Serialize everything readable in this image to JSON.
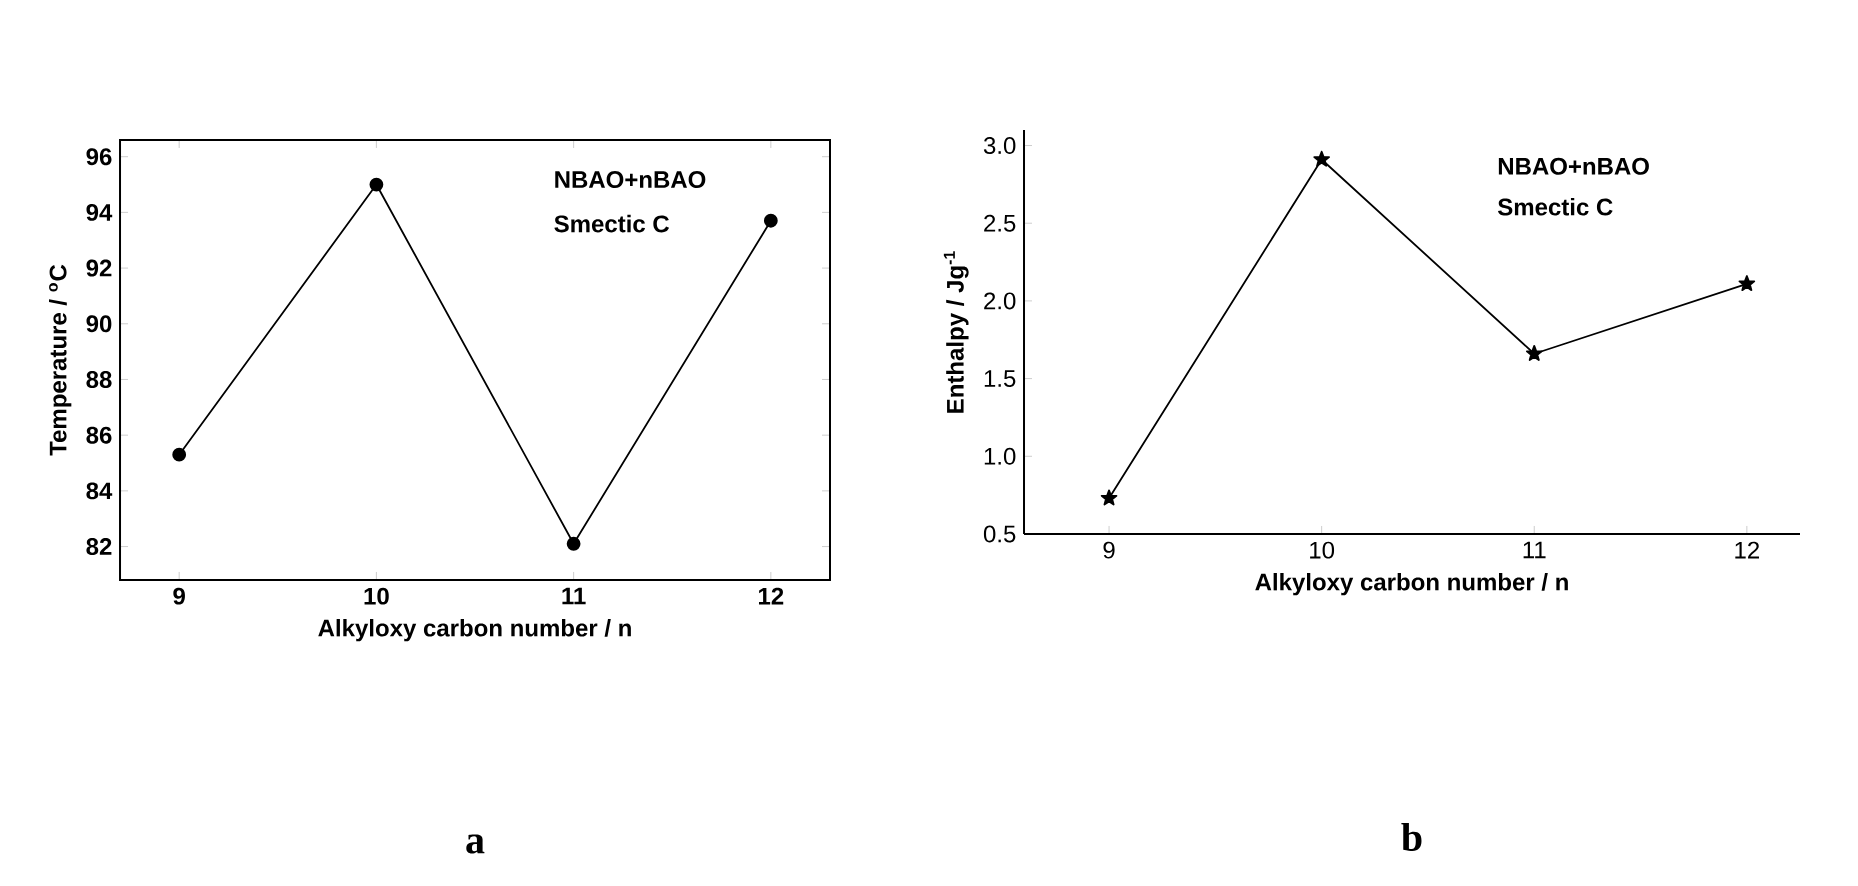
{
  "chart_data": [
    {
      "type": "line",
      "x": [
        9,
        10,
        11,
        12
      ],
      "values": [
        85.3,
        95.0,
        82.1,
        93.7
      ],
      "color": "#000000",
      "marker": "circle",
      "line_style": "solid",
      "xlabel": "Alkyloxy carbon number / n",
      "ylabel": "Temperature / $^{o}$C",
      "xlim": [
        8.7,
        12.3
      ],
      "ylim": [
        80.8,
        96.6
      ],
      "xticks": [
        9,
        10,
        11,
        12
      ],
      "yticks": [
        82,
        84,
        86,
        88,
        90,
        92,
        94,
        96
      ],
      "annotations": [
        "NBAO+nBAO",
        "Smectic C",
        "a"
      ]
    },
    {
      "type": "line",
      "x": [
        9,
        10,
        11,
        12
      ],
      "values": [
        0.73,
        2.91,
        1.66,
        2.11
      ],
      "color": "#000000",
      "marker": "star",
      "line_style": "solid",
      "xlabel": "Alkyloxy carbon number / n",
      "ylabel": "Enthalpy  / Jg$^{-1}$",
      "xlim": [
        8.6,
        12.25
      ],
      "ylim": [
        0.5,
        3.1
      ],
      "xticks": [
        9,
        10,
        11,
        12
      ],
      "yticks": [
        {
          "value": 0.5,
          "label": "0.5"
        },
        {
          "value": 1.0,
          "label": "1.0"
        },
        {
          "value": 1.5,
          "label": "1.5"
        },
        {
          "value": 2.0,
          "label": "2.0"
        },
        {
          "value": 2.5,
          "label": "2.5"
        },
        {
          "value": 3.0,
          "label": "3.0"
        }
      ],
      "annotations": [
        "NBAO+nBAO",
        "Smectic C",
        "b"
      ]
    }
  ]
}
